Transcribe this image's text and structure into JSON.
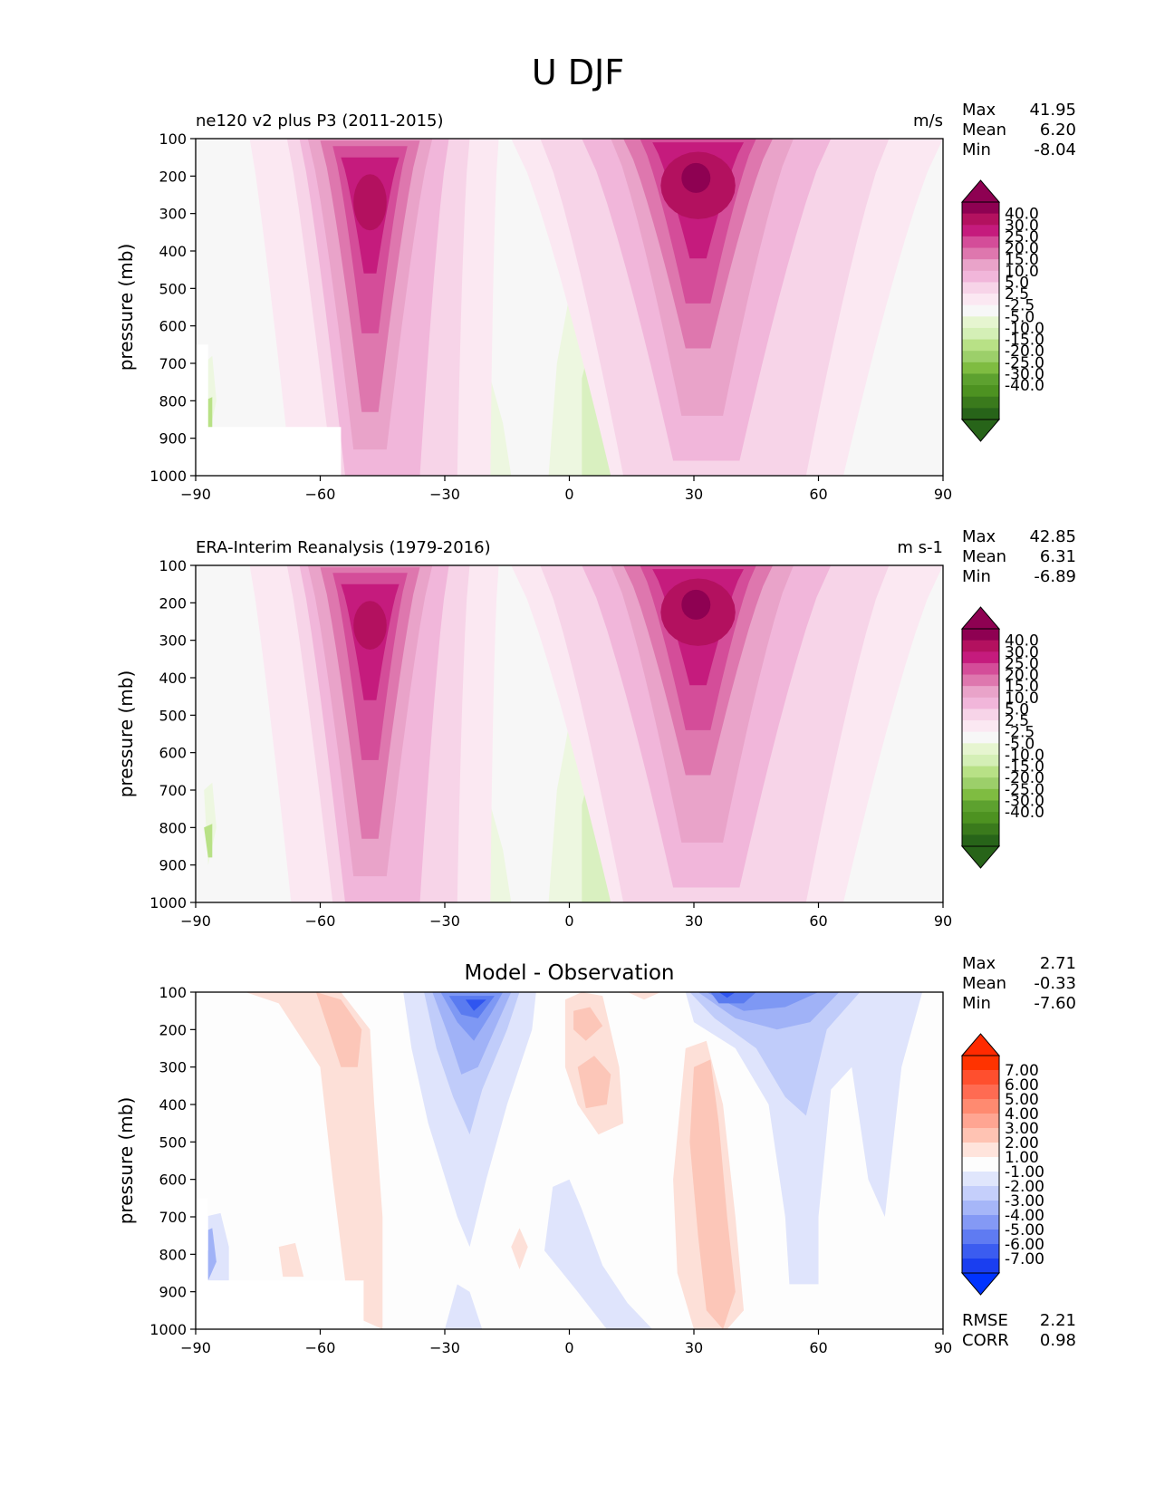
{
  "figure": {
    "title": "U DJF"
  },
  "x_ticks": [
    -90,
    -60,
    -30,
    0,
    30,
    60,
    90
  ],
  "y_ticks": [
    100,
    200,
    300,
    400,
    500,
    600,
    700,
    800,
    900,
    1000
  ],
  "ylabel": "pressure (mb)",
  "chart_data": [
    {
      "type": "heatmap",
      "title": "ne120 v2 plus P3 (2011-2015)",
      "units": "m/s",
      "xlim": [
        -90,
        90
      ],
      "ylim": [
        1000,
        100
      ],
      "ylabel": "pressure (mb)",
      "stats": [
        {
          "label": "Max",
          "value": "41.95"
        },
        {
          "label": "Mean",
          "value": "6.20"
        },
        {
          "label": "Min",
          "value": "-8.04"
        }
      ],
      "colorbar": {
        "labels": [
          "40.0",
          "30.0",
          "25.0",
          "20.0",
          "15.0",
          "10.0",
          "5.0",
          "2.5",
          "-2.5",
          "-5.0",
          "-10.0",
          "-15.0",
          "-20.0",
          "-25.0",
          "-30.0",
          "-40.0"
        ],
        "colors": [
          "#8e0152",
          "#b3115f",
          "#c51b7d",
          "#d44d99",
          "#de77ae",
          "#e9a3c9",
          "#f1b6da",
          "#f7d4e8",
          "#fbe8f2",
          "#f7f7f7",
          "#e6f5d0",
          "#d4efb6",
          "#b8e186",
          "#9ccf6a",
          "#7fbc41",
          "#5da12f",
          "#4d9221",
          "#3a7a1c",
          "#276419"
        ],
        "extend_top_color": "#8e0152",
        "extend_bottom_color": "#276419"
      },
      "field_colors": {
        "bg": "#f7f7f7",
        "p1": "#fbe8f2",
        "p2": "#f7d4e8",
        "p3": "#f1b6da",
        "p4": "#e9a3c9",
        "p5": "#de77ae",
        "p6": "#d44d99",
        "p7": "#c51b7d",
        "p8": "#b3115f",
        "p9": "#8e0152",
        "g1": "#edf7e0",
        "g2": "#d9f0c0",
        "g3": "#b8e186"
      },
      "features": [
        {
          "kind": "jet",
          "lat": -48,
          "peak_p": 250,
          "value": 35
        },
        {
          "kind": "jet",
          "lat": 30,
          "peak_p": 210,
          "value": 41.95
        }
      ]
    },
    {
      "type": "heatmap",
      "title": "ERA-Interim Reanalysis (1979-2016)",
      "units": "m s-1",
      "xlim": [
        -90,
        90
      ],
      "ylim": [
        1000,
        100
      ],
      "ylabel": "pressure (mb)",
      "stats": [
        {
          "label": "Max",
          "value": "42.85"
        },
        {
          "label": "Mean",
          "value": "6.31"
        },
        {
          "label": "Min",
          "value": "-6.89"
        }
      ],
      "colorbar": {
        "labels": [
          "40.0",
          "30.0",
          "25.0",
          "20.0",
          "15.0",
          "10.0",
          "5.0",
          "2.5",
          "-2.5",
          "-5.0",
          "-10.0",
          "-15.0",
          "-20.0",
          "-25.0",
          "-30.0",
          "-40.0"
        ],
        "colors": [
          "#8e0152",
          "#b3115f",
          "#c51b7d",
          "#d44d99",
          "#de77ae",
          "#e9a3c9",
          "#f1b6da",
          "#f7d4e8",
          "#fbe8f2",
          "#f7f7f7",
          "#e6f5d0",
          "#d4efb6",
          "#b8e186",
          "#9ccf6a",
          "#7fbc41",
          "#5da12f",
          "#4d9221",
          "#3a7a1c",
          "#276419"
        ],
        "extend_top_color": "#8e0152",
        "extend_bottom_color": "#276419"
      },
      "field_colors": {
        "bg": "#f7f7f7",
        "p1": "#fbe8f2",
        "p2": "#f7d4e8",
        "p3": "#f1b6da",
        "p4": "#e9a3c9",
        "p5": "#de77ae",
        "p6": "#d44d99",
        "p7": "#c51b7d",
        "p8": "#b3115f",
        "p9": "#8e0152",
        "g1": "#edf7e0",
        "g2": "#d9f0c0",
        "g3": "#b8e186"
      },
      "features": [
        {
          "kind": "jet",
          "lat": -48,
          "peak_p": 240,
          "value": 35
        },
        {
          "kind": "jet",
          "lat": 31,
          "peak_p": 200,
          "value": 42.85
        }
      ]
    },
    {
      "type": "heatmap",
      "title": "Model - Observation",
      "units": "",
      "xlim": [
        -90,
        90
      ],
      "ylim": [
        1000,
        100
      ],
      "ylabel": "pressure (mb)",
      "stats": [
        {
          "label": "Max",
          "value": "2.71"
        },
        {
          "label": "Mean",
          "value": "-0.33"
        },
        {
          "label": "Min",
          "value": "-7.60"
        }
      ],
      "metrics": [
        {
          "label": "RMSE",
          "value": "2.21"
        },
        {
          "label": "CORR",
          "value": "0.98"
        }
      ],
      "colorbar": {
        "labels": [
          "7.00",
          "6.00",
          "5.00",
          "4.00",
          "3.00",
          "2.00",
          "1.00",
          "-1.00",
          "-2.00",
          "-3.00",
          "-4.00",
          "-5.00",
          "-6.00",
          "-7.00"
        ],
        "colors": [
          "#ff3300",
          "#ff4f2e",
          "#ff6b52",
          "#ff8a70",
          "#ffa592",
          "#ffc3b3",
          "#ffe4dc",
          "#fdfdfd",
          "#e0e6fc",
          "#c5cffb",
          "#a6b6f8",
          "#8499f5",
          "#5f7bf2",
          "#3b5cf0",
          "#1a3ef0"
        ],
        "extend_top_color": "#ff2a00",
        "extend_bottom_color": "#0033ff"
      },
      "field_colors": {
        "bg": "#fdfdfd",
        "r1": "#fde0d8",
        "r2": "#fcc6b8",
        "b1": "#dfe4fc",
        "b2": "#c0ccfa",
        "b3": "#a0b2f7",
        "b4": "#7e98f4",
        "b5": "#5a7bf0",
        "b6": "#2f55f0"
      },
      "features": [
        {
          "kind": "negative",
          "lat": -23,
          "peak_p": 130,
          "value": -7.6
        },
        {
          "kind": "negative",
          "lat": 37,
          "peak_p": 110,
          "value": -6.5
        },
        {
          "kind": "positive",
          "lat": 34,
          "peak_p": 600,
          "value": 2.71
        }
      ]
    }
  ]
}
